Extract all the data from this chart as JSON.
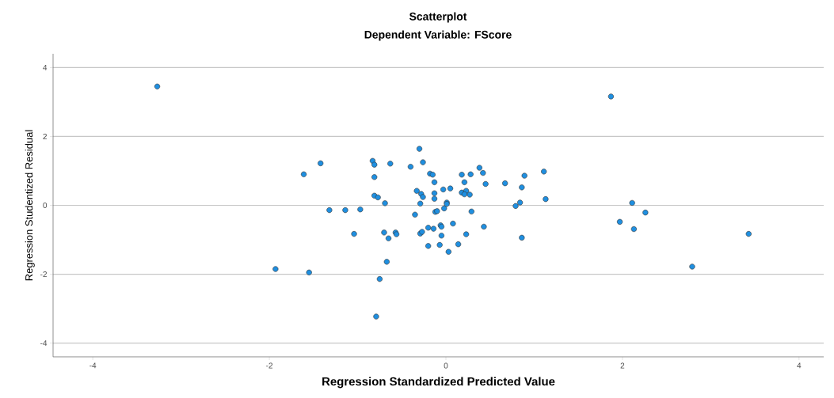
{
  "chart_data": {
    "type": "scatter",
    "title": "Scatterplot",
    "subtitle": "Dependent Variable: FScore",
    "xlabel": "Regression Standardized Predicted Value",
    "ylabel": "Regression Studentized Residual",
    "x": [
      -3.27,
      1.87,
      2.11,
      1.97,
      2.26,
      2.13,
      3.43,
      2.79,
      -0.3,
      -1.42,
      -1.61,
      -0.83,
      -0.81,
      -0.63,
      -0.4,
      -0.26,
      -0.81,
      -0.18,
      -0.15,
      -0.13,
      -0.33,
      -0.28,
      -0.26,
      -0.13,
      -0.13,
      -0.81,
      -0.77,
      -0.69,
      -0.29,
      -1.32,
      -1.14,
      -0.97,
      -0.35,
      -0.12,
      -0.1,
      -1.04,
      -0.7,
      -0.65,
      -0.57,
      -0.56,
      -0.29,
      -0.27,
      -0.2,
      -0.14,
      -0.06,
      -0.2,
      -0.07,
      -0.67,
      -1.93,
      -1.55,
      -0.75,
      -0.79,
      -0.05,
      0.38,
      0.42,
      0.18,
      0.28,
      0.89,
      1.11,
      0.21,
      0.45,
      0.67,
      0.86,
      -0.03,
      0.05,
      0.18,
      0.23,
      0.21,
      0.27,
      1.13,
      0.84,
      0.79,
      0.01,
      0.01,
      -0.02,
      0.29,
      0.08,
      0.43,
      -0.05,
      0.23,
      0.86,
      0.14,
      0.03
    ],
    "values": [
      3.45,
      3.16,
      0.07,
      -0.48,
      -0.21,
      -0.69,
      -0.83,
      -1.78,
      1.64,
      1.22,
      0.9,
      1.29,
      1.18,
      1.21,
      1.12,
      1.25,
      0.82,
      0.92,
      0.89,
      0.67,
      0.42,
      0.33,
      0.24,
      0.35,
      0.19,
      0.28,
      0.23,
      0.06,
      0.05,
      -0.14,
      -0.14,
      -0.12,
      -0.27,
      -0.19,
      -0.17,
      -0.83,
      -0.79,
      -0.96,
      -0.79,
      -0.84,
      -0.82,
      -0.77,
      -0.65,
      -0.68,
      -0.58,
      -1.18,
      -1.15,
      -1.64,
      -1.85,
      -1.95,
      -2.14,
      -3.23,
      -0.88,
      1.09,
      0.94,
      0.89,
      0.9,
      0.86,
      0.98,
      0.67,
      0.62,
      0.64,
      0.52,
      0.46,
      0.49,
      0.37,
      0.42,
      0.32,
      0.31,
      0.18,
      0.08,
      -0.02,
      0.08,
      0.04,
      -0.09,
      -0.18,
      -0.53,
      -0.62,
      -0.62,
      -0.84,
      -0.94,
      -1.13,
      -1.35
    ],
    "color": "#1f8fe0",
    "grid": "y",
    "xlim": [
      -4.45,
      4.28
    ],
    "ylim": [
      -4.4,
      4.4
    ],
    "xticks": [
      -4,
      -2,
      0,
      2,
      4
    ],
    "yticks": [
      -4,
      -2,
      0,
      2,
      4
    ]
  }
}
